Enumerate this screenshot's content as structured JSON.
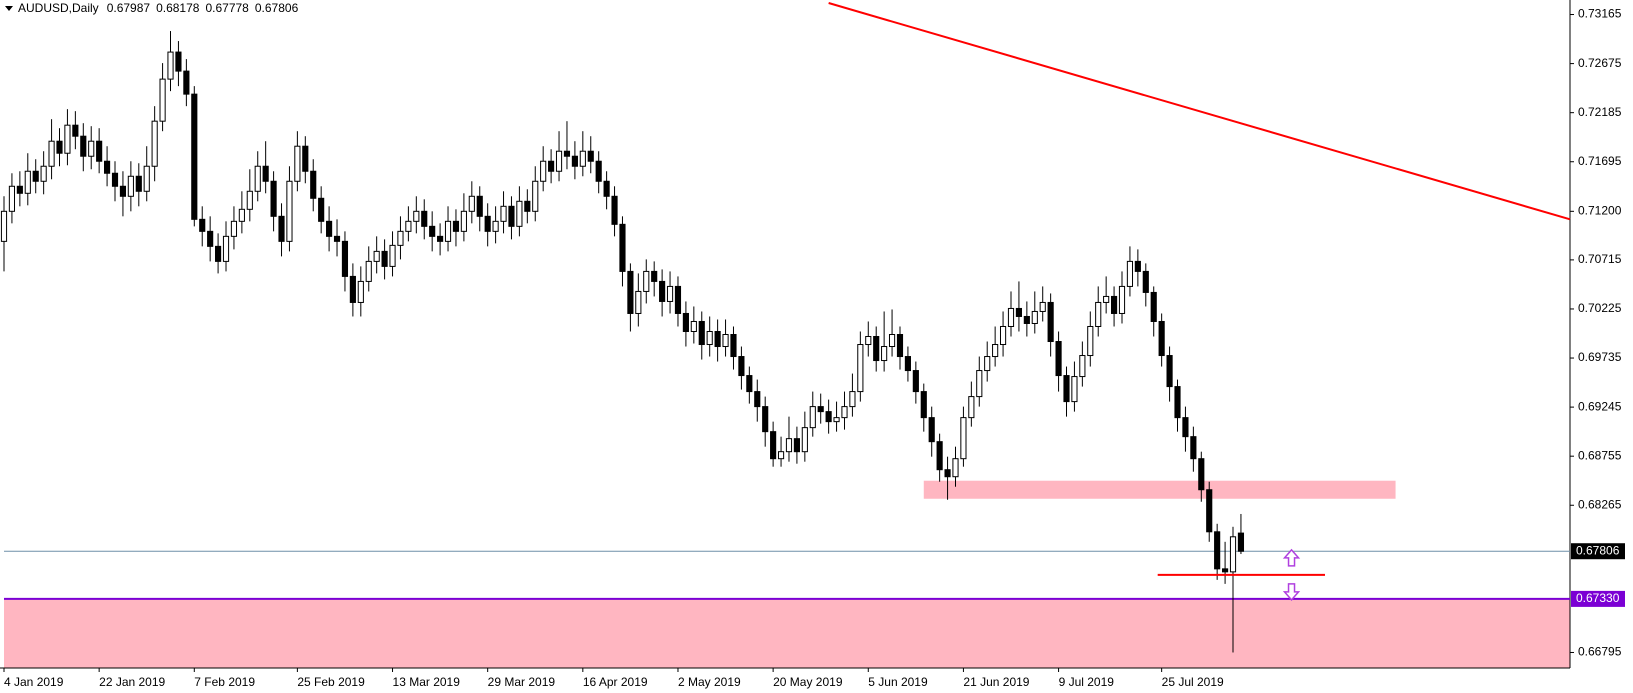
{
  "chart_data": {
    "type": "candlestick",
    "symbol": "AUDUSD,Daily",
    "bull_color": "#ffffff",
    "bear_color": "#000000",
    "outline_color": "#000000",
    "ylim": [
      0.6664,
      0.7331
    ],
    "yticks": [
      0.73165,
      0.72675,
      0.72185,
      0.71695,
      {
        "value": 0.712,
        "label": "0.71200"
      },
      0.70715,
      0.70225,
      0.69735,
      0.69245,
      0.68755,
      0.68265,
      0.66795
    ],
    "xlim": [
      0,
      197.5
    ],
    "xticks": [
      {
        "value": 0,
        "label": "4 Jan 2019"
      },
      {
        "value": 12,
        "label": "22 Jan 2019"
      },
      {
        "value": 24,
        "label": "7 Feb 2019"
      },
      {
        "value": 37,
        "label": "25 Feb 2019"
      },
      {
        "value": 49,
        "label": "13 Mar 2019"
      },
      {
        "value": 61,
        "label": "29 Mar 2019"
      },
      {
        "value": 73,
        "label": "16 Apr 2019"
      },
      {
        "value": 85,
        "label": "2 May 2019"
      },
      {
        "value": 97,
        "label": "20 May 2019"
      },
      {
        "value": 109,
        "label": "5 Jun 2019"
      },
      {
        "value": 121,
        "label": "21 Jun 2019"
      },
      {
        "value": 133,
        "label": "9 Jul 2019"
      },
      {
        "value": 146,
        "label": "25 Jul 2019"
      }
    ],
    "bid": 0.67806,
    "bid_color": "#6f8fa8",
    "support_level": {
      "value": 0.6733,
      "label": "0.67330"
    },
    "support_color": "#7b00d4",
    "trendline": {
      "x": [
        104,
        197.5
      ],
      "y": [
        0.7328,
        0.7112
      ],
      "color": "#ff0000"
    },
    "level_line": {
      "x": [
        145.5,
        166.6
      ],
      "y": 0.6757,
      "color": "#ff0000"
    },
    "zones": [
      {
        "x": [
          116,
          175.5
        ],
        "y": [
          0.6833,
          0.6851
        ],
        "color": "#ffb6c1"
      },
      {
        "x": [
          0,
          197.5
        ],
        "y": [
          0.6664,
          0.6733
        ],
        "color": "#ffb6c1"
      }
    ],
    "ohlc": [
      [
        0.709,
        0.7135,
        0.706,
        0.712
      ],
      [
        0.712,
        0.7158,
        0.7108,
        0.7145
      ],
      [
        0.7145,
        0.716,
        0.7125,
        0.7138
      ],
      [
        0.7138,
        0.7178,
        0.7126,
        0.716
      ],
      [
        0.716,
        0.7172,
        0.7138,
        0.715
      ],
      [
        0.715,
        0.718,
        0.7137,
        0.7165
      ],
      [
        0.7165,
        0.7212,
        0.7152,
        0.719
      ],
      [
        0.719,
        0.7203,
        0.7165,
        0.7178
      ],
      [
        0.7178,
        0.7222,
        0.7166,
        0.7206
      ],
      [
        0.7206,
        0.722,
        0.7182,
        0.7195
      ],
      [
        0.7195,
        0.7208,
        0.716,
        0.7175
      ],
      [
        0.7175,
        0.7205,
        0.7162,
        0.719
      ],
      [
        0.719,
        0.7203,
        0.7158,
        0.717
      ],
      [
        0.717,
        0.7185,
        0.7145,
        0.7158
      ],
      [
        0.7158,
        0.717,
        0.713,
        0.7145
      ],
      [
        0.7145,
        0.716,
        0.7115,
        0.7135
      ],
      [
        0.7135,
        0.717,
        0.712,
        0.7155
      ],
      [
        0.7155,
        0.7168,
        0.7125,
        0.714
      ],
      [
        0.714,
        0.7185,
        0.713,
        0.7165
      ],
      [
        0.7165,
        0.7225,
        0.715,
        0.721
      ],
      [
        0.721,
        0.7268,
        0.72,
        0.7252
      ],
      [
        0.7252,
        0.73,
        0.724,
        0.7279
      ],
      [
        0.7279,
        0.729,
        0.7245,
        0.726
      ],
      [
        0.726,
        0.7272,
        0.7225,
        0.7237
      ],
      [
        0.7237,
        0.7245,
        0.7105,
        0.7112
      ],
      [
        0.7112,
        0.7125,
        0.7085,
        0.71
      ],
      [
        0.71,
        0.7115,
        0.707,
        0.7085
      ],
      [
        0.7085,
        0.7098,
        0.7058,
        0.707
      ],
      [
        0.707,
        0.711,
        0.706,
        0.7095
      ],
      [
        0.7095,
        0.7125,
        0.7082,
        0.711
      ],
      [
        0.711,
        0.714,
        0.7098,
        0.7122
      ],
      [
        0.7122,
        0.7162,
        0.711,
        0.714
      ],
      [
        0.714,
        0.718,
        0.713,
        0.7165
      ],
      [
        0.7165,
        0.719,
        0.7138,
        0.715
      ],
      [
        0.715,
        0.716,
        0.71,
        0.7115
      ],
      [
        0.7115,
        0.7128,
        0.7075,
        0.709
      ],
      [
        0.709,
        0.7165,
        0.708,
        0.715
      ],
      [
        0.715,
        0.72,
        0.714,
        0.7185
      ],
      [
        0.7185,
        0.7195,
        0.7148,
        0.716
      ],
      [
        0.716,
        0.7172,
        0.712,
        0.7133
      ],
      [
        0.7133,
        0.7145,
        0.7098,
        0.711
      ],
      [
        0.711,
        0.7125,
        0.708,
        0.7095
      ],
      [
        0.7095,
        0.7112,
        0.7075,
        0.709
      ],
      [
        0.709,
        0.71,
        0.704,
        0.7055
      ],
      [
        0.7055,
        0.7068,
        0.7015,
        0.7029
      ],
      [
        0.7029,
        0.7065,
        0.7015,
        0.705
      ],
      [
        0.705,
        0.7085,
        0.704,
        0.707
      ],
      [
        0.707,
        0.7095,
        0.7058,
        0.708
      ],
      [
        0.708,
        0.7092,
        0.7052,
        0.7065
      ],
      [
        0.7065,
        0.71,
        0.7055,
        0.7086
      ],
      [
        0.7086,
        0.7115,
        0.7072,
        0.71
      ],
      [
        0.71,
        0.7125,
        0.709,
        0.711
      ],
      [
        0.711,
        0.7135,
        0.7098,
        0.712
      ],
      [
        0.712,
        0.7132,
        0.7092,
        0.7105
      ],
      [
        0.7105,
        0.712,
        0.708,
        0.7095
      ],
      [
        0.7095,
        0.7108,
        0.7076,
        0.709
      ],
      [
        0.709,
        0.7125,
        0.708,
        0.711
      ],
      [
        0.711,
        0.7122,
        0.7085,
        0.71
      ],
      [
        0.71,
        0.7138,
        0.709,
        0.712
      ],
      [
        0.712,
        0.715,
        0.7108,
        0.7135
      ],
      [
        0.7135,
        0.7145,
        0.71,
        0.7115
      ],
      [
        0.7115,
        0.7128,
        0.7085,
        0.71
      ],
      [
        0.71,
        0.7125,
        0.7088,
        0.711
      ],
      [
        0.711,
        0.714,
        0.7098,
        0.7125
      ],
      [
        0.7125,
        0.7135,
        0.7092,
        0.7105
      ],
      [
        0.7105,
        0.7145,
        0.7095,
        0.713
      ],
      [
        0.713,
        0.7142,
        0.7108,
        0.712
      ],
      [
        0.712,
        0.7165,
        0.711,
        0.715
      ],
      [
        0.715,
        0.7185,
        0.714,
        0.717
      ],
      [
        0.717,
        0.7182,
        0.7148,
        0.716
      ],
      [
        0.716,
        0.72,
        0.715,
        0.718
      ],
      [
        0.718,
        0.721,
        0.7162,
        0.7175
      ],
      [
        0.7175,
        0.719,
        0.7152,
        0.7165
      ],
      [
        0.7165,
        0.72,
        0.7155,
        0.718
      ],
      [
        0.718,
        0.7195,
        0.7158,
        0.717
      ],
      [
        0.717,
        0.718,
        0.7138,
        0.715
      ],
      [
        0.715,
        0.716,
        0.7122,
        0.7135
      ],
      [
        0.7135,
        0.7145,
        0.7095,
        0.7107
      ],
      [
        0.7107,
        0.7115,
        0.7045,
        0.706
      ],
      [
        0.706,
        0.7068,
        0.7,
        0.7018
      ],
      [
        0.7018,
        0.7058,
        0.7005,
        0.704
      ],
      [
        0.704,
        0.7072,
        0.7028,
        0.706
      ],
      [
        0.706,
        0.707,
        0.7035,
        0.705
      ],
      [
        0.705,
        0.7062,
        0.7015,
        0.703
      ],
      [
        0.703,
        0.706,
        0.7018,
        0.7045
      ],
      [
        0.7045,
        0.7055,
        0.7005,
        0.7018
      ],
      [
        0.7018,
        0.703,
        0.6985,
        0.7
      ],
      [
        0.7,
        0.7025,
        0.6988,
        0.701
      ],
      [
        0.701,
        0.702,
        0.6972,
        0.6987
      ],
      [
        0.6987,
        0.7015,
        0.6975,
        0.7
      ],
      [
        0.7,
        0.7012,
        0.697,
        0.6985
      ],
      [
        0.6985,
        0.7012,
        0.6975,
        0.6997
      ],
      [
        0.6997,
        0.7005,
        0.6962,
        0.6975
      ],
      [
        0.6975,
        0.6985,
        0.6942,
        0.6956
      ],
      [
        0.6956,
        0.6965,
        0.6928,
        0.694
      ],
      [
        0.694,
        0.6952,
        0.691,
        0.6925
      ],
      [
        0.6925,
        0.6935,
        0.6885,
        0.69
      ],
      [
        0.69,
        0.691,
        0.6865,
        0.6873
      ],
      [
        0.6873,
        0.6895,
        0.6865,
        0.688
      ],
      [
        0.688,
        0.6915,
        0.687,
        0.6893
      ],
      [
        0.6893,
        0.6905,
        0.6868,
        0.688
      ],
      [
        0.688,
        0.692,
        0.687,
        0.6904
      ],
      [
        0.6904,
        0.694,
        0.6895,
        0.6925
      ],
      [
        0.6925,
        0.6938,
        0.6908,
        0.692
      ],
      [
        0.692,
        0.6932,
        0.6898,
        0.691
      ],
      [
        0.691,
        0.693,
        0.69,
        0.6914
      ],
      [
        0.6914,
        0.694,
        0.6902,
        0.6925
      ],
      [
        0.6925,
        0.6958,
        0.6915,
        0.694
      ],
      [
        0.694,
        0.7,
        0.693,
        0.6987
      ],
      [
        0.6987,
        0.701,
        0.6975,
        0.6995
      ],
      [
        0.6995,
        0.7005,
        0.696,
        0.6971
      ],
      [
        0.6971,
        0.702,
        0.696,
        0.6985
      ],
      [
        0.6985,
        0.7022,
        0.6975,
        0.6997
      ],
      [
        0.6997,
        0.7005,
        0.6962,
        0.6975
      ],
      [
        0.6975,
        0.6985,
        0.695,
        0.6961
      ],
      [
        0.6961,
        0.697,
        0.6928,
        0.694
      ],
      [
        0.694,
        0.6948,
        0.69,
        0.6914
      ],
      [
        0.6914,
        0.6925,
        0.6875,
        0.689
      ],
      [
        0.689,
        0.6898,
        0.685,
        0.6862
      ],
      [
        0.6862,
        0.6875,
        0.6832,
        0.6855
      ],
      [
        0.6855,
        0.6885,
        0.6845,
        0.6873
      ],
      [
        0.6873,
        0.6925,
        0.6865,
        0.6914
      ],
      [
        0.6914,
        0.695,
        0.6905,
        0.6935
      ],
      [
        0.6935,
        0.6975,
        0.6925,
        0.6961
      ],
      [
        0.6961,
        0.699,
        0.695,
        0.6975
      ],
      [
        0.6975,
        0.7005,
        0.6965,
        0.6987
      ],
      [
        0.6987,
        0.702,
        0.6975,
        0.7005
      ],
      [
        0.7005,
        0.704,
        0.6995,
        0.7023
      ],
      [
        0.7023,
        0.705,
        0.7,
        0.7015
      ],
      [
        0.7015,
        0.703,
        0.6995,
        0.7008
      ],
      [
        0.7008,
        0.704,
        0.6998,
        0.702
      ],
      [
        0.702,
        0.7045,
        0.701,
        0.7029
      ],
      [
        0.7029,
        0.7038,
        0.6975,
        0.699
      ],
      [
        0.699,
        0.7,
        0.694,
        0.6956
      ],
      [
        0.6956,
        0.6965,
        0.6915,
        0.693
      ],
      [
        0.693,
        0.697,
        0.692,
        0.6955
      ],
      [
        0.6955,
        0.699,
        0.6945,
        0.6976
      ],
      [
        0.6976,
        0.702,
        0.6965,
        0.7005
      ],
      [
        0.7005,
        0.7045,
        0.6995,
        0.7029
      ],
      [
        0.7029,
        0.7055,
        0.7018,
        0.7035
      ],
      [
        0.7035,
        0.7045,
        0.7005,
        0.7018
      ],
      [
        0.7018,
        0.706,
        0.7008,
        0.7045
      ],
      [
        0.7045,
        0.7085,
        0.7035,
        0.707
      ],
      [
        0.707,
        0.7082,
        0.7045,
        0.706
      ],
      [
        0.706,
        0.7068,
        0.7025,
        0.7039
      ],
      [
        0.7039,
        0.7045,
        0.6995,
        0.701
      ],
      [
        0.701,
        0.7018,
        0.6965,
        0.6976
      ],
      [
        0.6976,
        0.6985,
        0.693,
        0.6945
      ],
      [
        0.6945,
        0.6952,
        0.69,
        0.6914
      ],
      [
        0.6914,
        0.6925,
        0.688,
        0.6895
      ],
      [
        0.6895,
        0.6905,
        0.686,
        0.6873
      ],
      [
        0.6873,
        0.688,
        0.683,
        0.6842
      ],
      [
        0.6842,
        0.685,
        0.679,
        0.68
      ],
      [
        0.68,
        0.6808,
        0.6752,
        0.6763
      ],
      [
        0.6763,
        0.679,
        0.6748,
        0.676
      ],
      [
        0.676,
        0.6805,
        0.66795,
        0.6795
      ],
      [
        0.67987,
        0.68178,
        0.67778,
        0.67806
      ]
    ]
  }
}
